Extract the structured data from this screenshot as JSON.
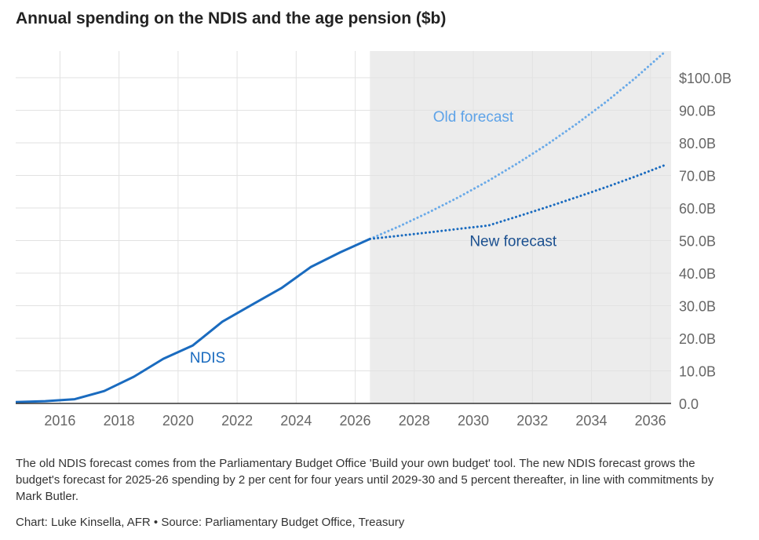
{
  "title": "Annual spending on the NDIS and the age pension ($b)",
  "note": "The old NDIS forecast comes from the Parliamentary Budget Office 'Build your own budget' tool. The new NDIS forecast grows the budget's forecast for 2025-26 spending by 2 per cent for four years until 2029-30 and 5 percent thereafter, in line with commitments by Mark Butler.",
  "credit": "Chart: Luke Kinsella, AFR • Source: Parliamentary Budget Office, Treasury",
  "chart_data": {
    "type": "line",
    "title": "Annual spending on the NDIS and the age pension ($b)",
    "xlabel": "",
    "ylabel": "",
    "xlim": [
      2014.5,
      2036.7
    ],
    "ylim": [
      0,
      100
    ],
    "x_ticks": [
      2016,
      2018,
      2020,
      2022,
      2024,
      2026,
      2028,
      2030,
      2032,
      2034,
      2036
    ],
    "y_ticks": [
      0,
      10,
      20,
      30,
      40,
      50,
      60,
      70,
      80,
      90,
      100
    ],
    "y_tick_labels": [
      "0.0",
      "10.0B",
      "20.0B",
      "30.0B",
      "40.0B",
      "50.0B",
      "60.0B",
      "70.0B",
      "80.0B",
      "90.0B",
      "$100.0B"
    ],
    "grid": true,
    "forecast_region_start": 2026.5,
    "colors": {
      "actual": "#1a6bbf",
      "new_forecast": "#1a6bbf",
      "old_forecast": "#6aaae8",
      "forecast_shade": "#ececec",
      "new_label": "#1a4f8f",
      "old_label": "#5ea3e8"
    },
    "series": [
      {
        "name": "NDIS",
        "style": "solid",
        "x": [
          2014.5,
          2015.5,
          2016.5,
          2017.5,
          2018.5,
          2019.5,
          2020.5,
          2021.5,
          2022.5,
          2023.5,
          2024.5,
          2025.5,
          2026.5
        ],
        "y": [
          0.4,
          0.7,
          1.3,
          3.8,
          8.2,
          13.7,
          17.8,
          25.1,
          30.3,
          35.4,
          41.9,
          46.4,
          50.5
        ]
      },
      {
        "name": "New forecast",
        "style": "dotted",
        "x": [
          2026.5,
          2027.5,
          2028.5,
          2029.5,
          2030.5,
          2031.5,
          2032.5,
          2033.5,
          2034.5,
          2035.5,
          2036.5
        ],
        "y": [
          50.5,
          51.5,
          52.5,
          53.6,
          54.6,
          57.4,
          60.3,
          63.3,
          66.4,
          69.7,
          73.2
        ]
      },
      {
        "name": "Old forecast",
        "style": "dotted",
        "x": [
          2026.5,
          2027.5,
          2028.5,
          2029.5,
          2030.5,
          2031.5,
          2032.5,
          2033.5,
          2034.5,
          2035.5,
          2036.5
        ],
        "y": [
          50.5,
          54.4,
          58.7,
          63.3,
          68.3,
          73.7,
          79.5,
          85.8,
          92.6,
          100.0,
          108.0
        ]
      }
    ],
    "annotations": [
      {
        "text": "NDIS",
        "series": "NDIS",
        "x": 2021.0,
        "y": 12.5
      },
      {
        "text": "Old forecast",
        "series": "Old forecast",
        "x": 2030.0,
        "y": 86.5
      },
      {
        "text": "New forecast",
        "series": "New forecast",
        "x": 2031.35,
        "y": 48.3
      }
    ]
  }
}
